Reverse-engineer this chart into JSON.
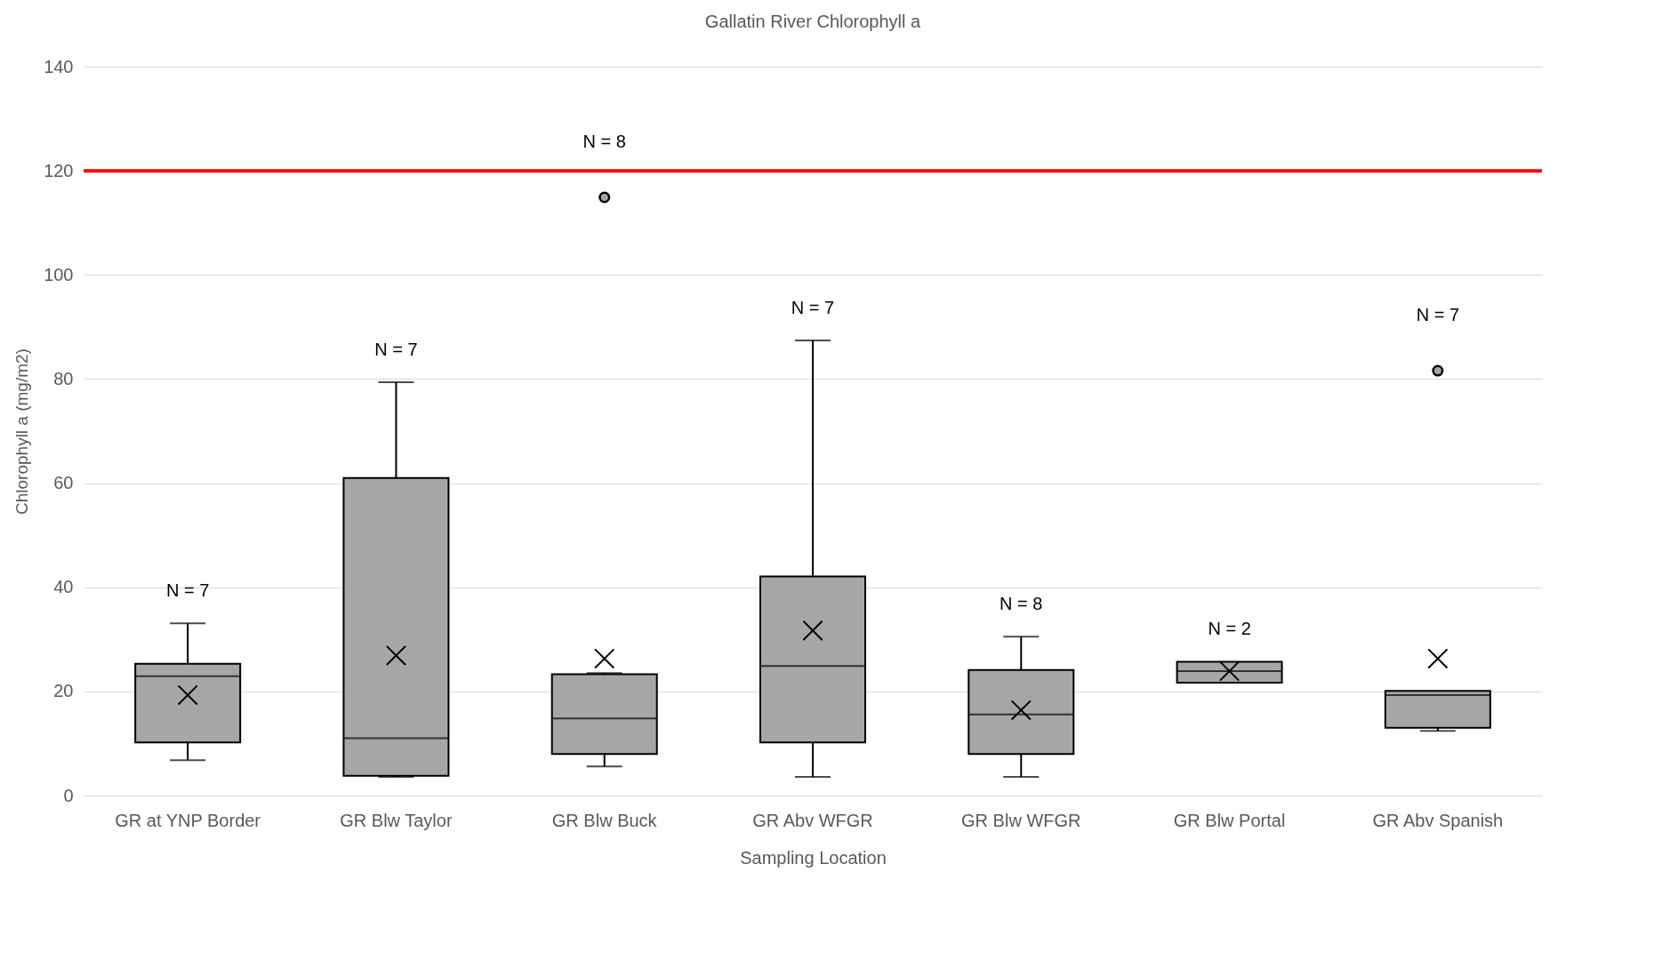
{
  "chart_data": {
    "type": "box",
    "title": "Gallatin River Chlorophyll a",
    "xlabel": "Sampling Location",
    "ylabel": "Chlorophyll a (mg/m2)",
    "categories": [
      "GR at YNP Border",
      "GR Blw Taylor",
      "GR Blw Buck",
      "GR Abv WFGR",
      "GR Blw WFGR",
      "GR Blw Portal",
      "GR Abv Spanish"
    ],
    "series": [
      {
        "color": "#a6a6a6",
        "boxes": [
          {
            "low": 6.8,
            "q1": 10.2,
            "median": 22.9,
            "q3": 25.3,
            "high": 33.1,
            "mean": 19.3
          },
          {
            "low": 3.6,
            "q1": 3.8,
            "median": 11,
            "q3": 61,
            "high": 79.4,
            "mean": 26.9
          },
          {
            "low": 5.6,
            "q1": 8,
            "median": 14.8,
            "q3": 23.3,
            "high": 23.5,
            "mean": 26.3,
            "outliers": [
              114.9
            ]
          },
          {
            "low": 3.6,
            "q1": 10.2,
            "median": 24.9,
            "q3": 42.1,
            "high": 87.4,
            "mean": 31.7
          },
          {
            "low": 3.6,
            "q1": 8,
            "median": 15.6,
            "q3": 24.1,
            "high": 30.5,
            "mean": 16.4
          },
          {
            "low": 21.7,
            "q1": 21.7,
            "median": 23.9,
            "q3": 25.7,
            "high": 25.7,
            "mean": 23.9
          },
          {
            "low": 12.4,
            "q1": 13,
            "median": 19.3,
            "q3": 20.1,
            "high": 20.1,
            "mean": 26.3,
            "outliers": [
              81.6
            ]
          }
        ]
      }
    ],
    "ylim": [
      0,
      140
    ],
    "yticks": [
      0,
      20,
      40,
      60,
      80,
      100,
      120,
      140
    ],
    "grid": "y",
    "ref_lines": [
      {
        "axis": "y",
        "value": 120,
        "color": "#ff0000"
      }
    ],
    "annotations": [
      "N = 7",
      "N = 7",
      "N = 8",
      "N = 7",
      "N = 8",
      "N = 2",
      "N = 7"
    ]
  }
}
